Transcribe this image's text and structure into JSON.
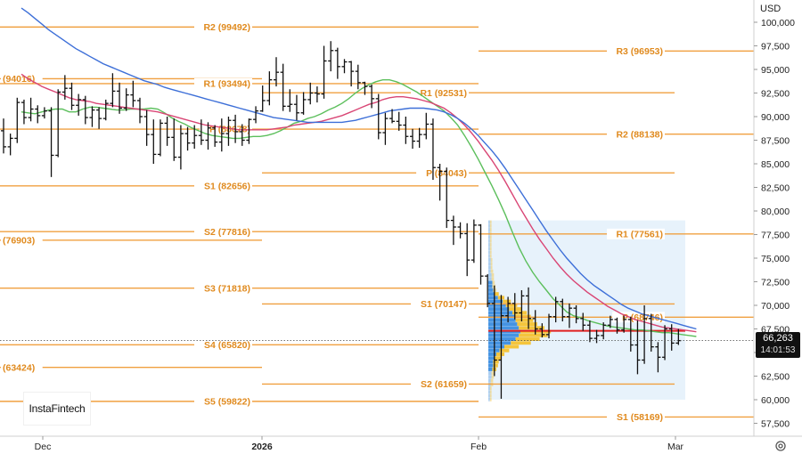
{
  "currency": "USD",
  "logo_text": "InstaFintech",
  "last_price": "66,263",
  "countdown": "14:01:53",
  "colors": {
    "pivot": "#f0a040",
    "candle": "#111111",
    "ma_fast": "#5cbf5c",
    "ma_mid": "#d94675",
    "ma_slow": "#3d6fd8",
    "poc": "#e02020",
    "profile_up": "#3c8de0",
    "profile_down": "#f6c232",
    "profile_bg": "#ddecfa"
  },
  "chart_data": {
    "type": "candlestick",
    "y_axis": {
      "min": 55500,
      "max": 102000,
      "ticks": [
        "57,500",
        "60,000",
        "62,500",
        "65,000",
        "67,500",
        "70,000",
        "72,500",
        "75,000",
        "77,500",
        "80,000",
        "82,500",
        "85,000",
        "87,500",
        "90,000",
        "92,500",
        "95,000",
        "97,500",
        "100,000"
      ]
    },
    "x_axis": {
      "labels": [
        "Dec",
        "2026",
        "Feb",
        "Mar"
      ]
    },
    "pivot_periods": [
      {
        "period": "Nov",
        "levels": [
          {
            "label": "(94016)",
            "value": 94016
          },
          {
            "label": "(76903)",
            "value": 76903
          },
          {
            "label": "(63424)",
            "value": 63424
          }
        ]
      },
      {
        "period": "Dec",
        "levels": [
          {
            "label": "R2 (99492)",
            "value": 99492
          },
          {
            "label": "R1 (93494)",
            "value": 93494
          },
          {
            "label": "P (88678)",
            "value": 88678
          },
          {
            "label": "S1 (82656)",
            "value": 82656
          },
          {
            "label": "S2 (77816)",
            "value": 77816
          },
          {
            "label": "S3 (71818)",
            "value": 71818
          },
          {
            "label": "S4 (65820)",
            "value": 65820
          },
          {
            "label": "S5 (59822)",
            "value": 59822
          }
        ]
      },
      {
        "period": "Jan",
        "levels": [
          {
            "label": "R1 (92531)",
            "value": 92531
          },
          {
            "label": "P (84043)",
            "value": 84043
          },
          {
            "label": "S1 (70147)",
            "value": 70147
          },
          {
            "label": "S2 (61659)",
            "value": 61659
          }
        ]
      },
      {
        "period": "Feb",
        "levels": [
          {
            "label": "R3 (96953)",
            "value": 96953
          },
          {
            "label": "R2 (88138)",
            "value": 88138
          },
          {
            "label": "R1 (77561)",
            "value": 77561
          },
          {
            "label": "P (68746)",
            "value": 68746
          },
          {
            "label": "S1 (58169)",
            "value": 58169
          }
        ]
      }
    ],
    "candles": [
      [
        88500,
        89800,
        86100,
        86800
      ],
      [
        86800,
        88200,
        85900,
        87700
      ],
      [
        87700,
        92000,
        87200,
        91500
      ],
      [
        91500,
        91800,
        89200,
        89900
      ],
      [
        89900,
        92000,
        89500,
        90800
      ],
      [
        90800,
        91200,
        89300,
        90100
      ],
      [
        90100,
        91000,
        89800,
        90600
      ],
      [
        90600,
        91000,
        83600,
        85900
      ],
      [
        85900,
        92900,
        85700,
        92600
      ],
      [
        92600,
        94400,
        91800,
        93000
      ],
      [
        93000,
        93600,
        90700,
        91200
      ],
      [
        91200,
        92400,
        90100,
        91800
      ],
      [
        91800,
        92200,
        89200,
        89900
      ],
      [
        89900,
        91100,
        88900,
        90700
      ],
      [
        90700,
        91000,
        88700,
        89800
      ],
      [
        89800,
        91800,
        89600,
        91400
      ],
      [
        91400,
        94600,
        91000,
        92700
      ],
      [
        92700,
        93600,
        90300,
        90900
      ],
      [
        90900,
        93000,
        90600,
        92300
      ],
      [
        92300,
        93800,
        91000,
        91700
      ],
      [
        91700,
        92000,
        89300,
        90000
      ],
      [
        90000,
        90700,
        86900,
        88100
      ],
      [
        88100,
        89700,
        85000,
        86000
      ],
      [
        86000,
        89700,
        85800,
        89300
      ],
      [
        89300,
        90000,
        86900,
        87800
      ],
      [
        87800,
        89800,
        85300,
        85700
      ],
      [
        85700,
        89100,
        84400,
        88200
      ],
      [
        88200,
        88900,
        86400,
        87200
      ],
      [
        87200,
        89100,
        86600,
        88000
      ],
      [
        88000,
        89700,
        87000,
        87500
      ],
      [
        87500,
        89400,
        86500,
        88800
      ],
      [
        88800,
        89100,
        86800,
        87300
      ],
      [
        87300,
        89800,
        86300,
        88200
      ],
      [
        88200,
        90000,
        86900,
        89600
      ],
      [
        89600,
        90200,
        87200,
        88400
      ],
      [
        88400,
        89200,
        86900,
        87500
      ],
      [
        87500,
        89800,
        87100,
        89700
      ],
      [
        89700,
        91100,
        89300,
        90600
      ],
      [
        90600,
        93300,
        90500,
        91700
      ],
      [
        91700,
        94800,
        91200,
        93900
      ],
      [
        93900,
        96300,
        93200,
        94700
      ],
      [
        94700,
        95600,
        90600,
        91100
      ],
      [
        91100,
        92900,
        90500,
        91300
      ],
      [
        91300,
        92300,
        89600,
        90400
      ],
      [
        90400,
        92600,
        90200,
        91800
      ],
      [
        91800,
        93600,
        91300,
        92500
      ],
      [
        92500,
        93200,
        91500,
        92400
      ],
      [
        92400,
        97500,
        91900,
        95900
      ],
      [
        95900,
        98000,
        94800,
        97000
      ],
      [
        97000,
        97300,
        94000,
        95300
      ],
      [
        95300,
        96100,
        94600,
        95800
      ],
      [
        95800,
        95900,
        93200,
        94800
      ],
      [
        94800,
        95500,
        92900,
        93600
      ],
      [
        93600,
        93700,
        92300,
        93200
      ],
      [
        93200,
        93400,
        90900,
        91900
      ],
      [
        91900,
        92400,
        87600,
        88300
      ],
      [
        88300,
        90400,
        87000,
        89800
      ],
      [
        89800,
        90800,
        89300,
        89500
      ],
      [
        89500,
        90500,
        88500,
        89100
      ],
      [
        89100,
        90000,
        87100,
        87900
      ],
      [
        87900,
        88700,
        86600,
        87400
      ],
      [
        87400,
        88800,
        86700,
        88100
      ],
      [
        88100,
        90400,
        87600,
        89200
      ],
      [
        89200,
        89800,
        83300,
        84600
      ],
      [
        84600,
        85000,
        81100,
        84200
      ],
      [
        84200,
        84600,
        78200,
        79000
      ],
      [
        79000,
        79500,
        76400,
        78300
      ],
      [
        78300,
        78800,
        77100,
        77600
      ],
      [
        77600,
        78700,
        73100,
        74800
      ],
      [
        74800,
        79100,
        74500,
        78500
      ],
      [
        78500,
        78600,
        72200,
        73100
      ],
      [
        73100,
        73300,
        69800,
        70200
      ],
      [
        70200,
        72100,
        62500,
        64200
      ],
      [
        64200,
        71100,
        60100,
        68900
      ],
      [
        68900,
        70900,
        68200,
        70200
      ],
      [
        70200,
        71300,
        68500,
        69200
      ],
      [
        69200,
        71600,
        68300,
        71000
      ],
      [
        71000,
        71900,
        67500,
        68600
      ],
      [
        68600,
        69500,
        66900,
        67500
      ],
      [
        67500,
        68100,
        66600,
        66900
      ],
      [
        66900,
        69100,
        66500,
        68800
      ],
      [
        68800,
        70900,
        68200,
        70400
      ],
      [
        70400,
        70700,
        68300,
        68800
      ],
      [
        68800,
        70200,
        67600,
        69700
      ],
      [
        69700,
        70000,
        68100,
        68600
      ],
      [
        68600,
        69200,
        67300,
        67900
      ],
      [
        67900,
        68400,
        66100,
        66500
      ],
      [
        66500,
        67400,
        66000,
        66800
      ],
      [
        66800,
        68200,
        66400,
        67900
      ],
      [
        67900,
        68900,
        67600,
        68500
      ],
      [
        68500,
        68700,
        67000,
        67400
      ],
      [
        67400,
        68900,
        67100,
        68500
      ],
      [
        68500,
        68800,
        65100,
        65800
      ],
      [
        65800,
        68400,
        62700,
        64200
      ],
      [
        64200,
        70000,
        63800,
        68600
      ],
      [
        68600,
        69100,
        65100,
        65600
      ],
      [
        65600,
        66100,
        62900,
        64500
      ],
      [
        64500,
        67900,
        64200,
        67500
      ],
      [
        67500,
        68000,
        65200,
        66000
      ],
      [
        66000,
        67500,
        65800,
        66263
      ]
    ],
    "series": [
      {
        "name": "MA fast",
        "values": [
          90500,
          90400,
          90300,
          90500,
          90700,
          90800,
          90800,
          90500,
          90500,
          90800,
          91000,
          91000,
          90900,
          90800,
          90700,
          90700,
          90800,
          90800,
          90800,
          90900,
          90800,
          90400,
          89900,
          89500,
          89200,
          88800,
          88500,
          88200,
          88000,
          87900,
          87800,
          87700,
          87700,
          87800,
          87900,
          87900,
          88000,
          88200,
          88500,
          88900,
          89300,
          89500,
          89800,
          90000,
          90300,
          90700,
          91000,
          91400,
          91900,
          92500,
          93000,
          93400,
          93700,
          93900,
          93900,
          93700,
          93400,
          93000,
          92600,
          92100,
          91600,
          91100,
          90600,
          89900,
          89100,
          88000,
          86800,
          85500,
          84100,
          82700,
          81200,
          79600,
          77800,
          76100,
          74700,
          73500,
          72500,
          71600,
          70700,
          70000,
          69300,
          68900,
          68700,
          68400,
          68200,
          68000,
          67800,
          67700,
          67600,
          67500,
          67400,
          67400,
          67300,
          67200,
          67100,
          67100,
          67000,
          66900,
          66800,
          66700
        ]
      },
      {
        "name": "MA mid",
        "values": [
          94500,
          94000,
          93600,
          93200,
          92900,
          92600,
          92300,
          92000,
          91800,
          91700,
          91600,
          91400,
          91300,
          91200,
          91100,
          91000,
          90900,
          90800,
          90700,
          90600,
          90500,
          90300,
          90100,
          89900,
          89700,
          89500,
          89300,
          89100,
          89000,
          88900,
          88800,
          88700,
          88600,
          88600,
          88600,
          88600,
          88600,
          88700,
          88800,
          88900,
          89100,
          89200,
          89300,
          89400,
          89500,
          89700,
          89900,
          90100,
          90400,
          90700,
          91000,
          91300,
          91500,
          91800,
          92000,
          92100,
          92100,
          92000,
          91900,
          91700,
          91500,
          91200,
          90900,
          90400,
          89800,
          89100,
          88300,
          87400,
          86400,
          85400,
          84300,
          83100,
          81800,
          80500,
          79300,
          78100,
          77000,
          76000,
          75000,
          74100,
          73300,
          72600,
          72000,
          71400,
          70900,
          70400,
          69900,
          69500,
          69100,
          68800,
          68500,
          68300,
          68100,
          67900,
          67700,
          67600,
          67500,
          67400,
          67300,
          67200
        ]
      },
      {
        "name": "MA slow",
        "values": [
          101500,
          101000,
          100400,
          99800,
          99200,
          98700,
          98200,
          97700,
          97200,
          96800,
          96400,
          96000,
          95600,
          95300,
          95000,
          94700,
          94400,
          94100,
          93800,
          93600,
          93400,
          93100,
          92900,
          92700,
          92500,
          92300,
          92100,
          91900,
          91700,
          91500,
          91300,
          91100,
          90900,
          90700,
          90500,
          90300,
          90100,
          89900,
          89800,
          89700,
          89600,
          89500,
          89400,
          89400,
          89400,
          89400,
          89400,
          89400,
          89500,
          89600,
          89800,
          90000,
          90200,
          90400,
          90600,
          90700,
          90800,
          90900,
          90900,
          90900,
          90800,
          90700,
          90500,
          90200,
          89800,
          89300,
          88700,
          88000,
          87200,
          86400,
          85500,
          84500,
          83400,
          82300,
          81200,
          80100,
          79000,
          77900,
          76900,
          75900,
          75000,
          74200,
          73400,
          72700,
          72100,
          71600,
          71100,
          70600,
          70100,
          69700,
          69400,
          69100,
          68900,
          68700,
          68500,
          68300,
          68100,
          67900,
          67700,
          67500
        ]
      }
    ],
    "volume_profile": {
      "poc": 67300,
      "price_min": 60000,
      "price_max": 79000,
      "bins": [
        [
          78800,
          0.02,
          0.02
        ],
        [
          78400,
          0.02,
          0.02
        ],
        [
          78000,
          0.02,
          0.02
        ],
        [
          77600,
          0.02,
          0.02
        ],
        [
          77200,
          0.02,
          0.02
        ],
        [
          76800,
          0.02,
          0.02
        ],
        [
          76400,
          0.02,
          0.02
        ],
        [
          76000,
          0.02,
          0.02
        ],
        [
          75600,
          0.02,
          0.02
        ],
        [
          75200,
          0.02,
          0.02
        ],
        [
          74800,
          0.03,
          0.02
        ],
        [
          74400,
          0.03,
          0.02
        ],
        [
          74000,
          0.03,
          0.02
        ],
        [
          73600,
          0.03,
          0.03
        ],
        [
          73200,
          0.04,
          0.03
        ],
        [
          72800,
          0.04,
          0.03
        ],
        [
          72400,
          0.05,
          0.03
        ],
        [
          72000,
          0.05,
          0.04
        ],
        [
          71600,
          0.06,
          0.04
        ],
        [
          71200,
          0.08,
          0.05
        ],
        [
          70800,
          0.12,
          0.08
        ],
        [
          70400,
          0.18,
          0.1
        ],
        [
          70000,
          0.22,
          0.14
        ],
        [
          69600,
          0.26,
          0.15
        ],
        [
          69200,
          0.3,
          0.18
        ],
        [
          68800,
          0.33,
          0.2
        ],
        [
          68400,
          0.34,
          0.22
        ],
        [
          68000,
          0.36,
          0.25
        ],
        [
          67600,
          0.38,
          0.32
        ],
        [
          67200,
          0.4,
          0.38
        ],
        [
          66800,
          0.38,
          0.36
        ],
        [
          66400,
          0.34,
          0.3
        ],
        [
          66000,
          0.28,
          0.25
        ],
        [
          65600,
          0.2,
          0.18
        ],
        [
          65200,
          0.14,
          0.12
        ],
        [
          64800,
          0.1,
          0.1
        ],
        [
          64400,
          0.08,
          0.08
        ],
        [
          64000,
          0.06,
          0.07
        ],
        [
          63600,
          0.06,
          0.06
        ],
        [
          63200,
          0.05,
          0.05
        ],
        [
          62800,
          0.04,
          0.04
        ],
        [
          62400,
          0.04,
          0.03
        ],
        [
          62000,
          0.03,
          0.03
        ],
        [
          61600,
          0.03,
          0.03
        ],
        [
          61200,
          0.02,
          0.02
        ],
        [
          60800,
          0.02,
          0.02
        ],
        [
          60400,
          0.02,
          0.02
        ],
        [
          60000,
          0.02,
          0.02
        ]
      ]
    }
  }
}
